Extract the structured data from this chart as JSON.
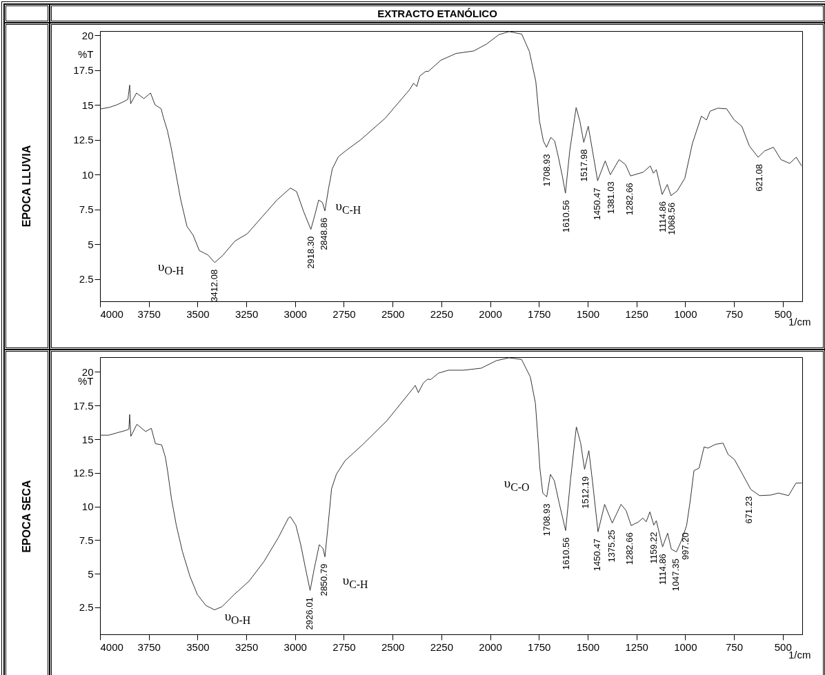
{
  "chart_data": [
    {
      "type": "line",
      "title": "EXTRACTO ETANÓLICO",
      "subtitle": "EPOCA LLUVIA",
      "xlabel": "1/cm",
      "ylabel": "%T",
      "xlim": [
        4000,
        400
      ],
      "ylim": [
        0.9,
        20.3
      ],
      "xticks": [
        4000,
        3750,
        3500,
        3250,
        3000,
        2750,
        2500,
        2250,
        2000,
        1750,
        1500,
        1250,
        1000,
        750,
        500
      ],
      "yticks": [
        2.5,
        5,
        7.5,
        10,
        12.5,
        15,
        17.5,
        20
      ],
      "series": [
        {
          "color": "#333333",
          "x": [
            4000,
            3952,
            3914,
            3876,
            3857,
            3848,
            3843,
            3813,
            3775,
            3741,
            3718,
            3687,
            3674,
            3655,
            3636,
            3611,
            3586,
            3554,
            3523,
            3491,
            3447,
            3412,
            3371,
            3308,
            3245,
            3169,
            3093,
            3024,
            2992,
            2955,
            2919,
            2898,
            2879,
            2860,
            2847,
            2828,
            2809,
            2778,
            2740,
            2664,
            2538,
            2412,
            2393,
            2376,
            2361,
            2330,
            2317,
            2253,
            2175,
            2084,
            2019,
            1955,
            1903,
            1838,
            1799,
            1766,
            1747,
            1727,
            1711,
            1689,
            1669,
            1650,
            1630,
            1614,
            1592,
            1559,
            1540,
            1520,
            1497,
            1475,
            1449,
            1410,
            1384,
            1339,
            1306,
            1280,
            1215,
            1179,
            1163,
            1148,
            1118,
            1092,
            1073,
            1041,
            1002,
            963,
            917,
            891,
            872,
            833,
            788,
            749,
            710,
            671,
            626,
            593,
            548,
            509,
            464,
            431,
            403
          ],
          "values": [
            14.7,
            14.82,
            15.0,
            15.25,
            15.4,
            16.42,
            15.08,
            15.85,
            15.45,
            15.85,
            15.0,
            14.73,
            14.04,
            13.18,
            11.97,
            10.07,
            8.17,
            6.27,
            5.66,
            4.54,
            4.23,
            3.68,
            4.19,
            5.23,
            5.75,
            6.96,
            8.17,
            9.03,
            8.77,
            7.3,
            6.06,
            7.13,
            8.17,
            8.0,
            7.39,
            9.03,
            10.41,
            11.28,
            11.71,
            12.49,
            14.04,
            16.11,
            16.55,
            16.32,
            17.06,
            17.41,
            17.4,
            18.2,
            18.69,
            18.87,
            19.36,
            20.04,
            20.26,
            20.08,
            18.83,
            16.69,
            13.83,
            12.4,
            11.96,
            12.67,
            12.4,
            11.24,
            9.9,
            8.66,
            11.69,
            14.81,
            13.83,
            12.31,
            13.47,
            11.69,
            9.55,
            10.98,
            9.99,
            11.07,
            10.71,
            9.9,
            10.17,
            10.62,
            10.09,
            10.35,
            8.57,
            9.28,
            8.48,
            8.83,
            9.73,
            12.23,
            14.19,
            13.92,
            14.55,
            14.76,
            14.72,
            13.92,
            13.47,
            12.05,
            11.24,
            11.69,
            11.96,
            11.07,
            10.8,
            11.24,
            10.62
          ]
        }
      ],
      "annotations": [
        "υ$_{O-H}$",
        {
          "text": "3412.08",
          "x": 3412,
          "y": 3.68
        },
        {
          "text": "2918.30",
          "x": 2919,
          "y": 6.06
        },
        {
          "text": "2848.86",
          "x": 2849,
          "y": 7.39
        },
        "υ$_{C-H}$",
        {
          "text": "1708.93",
          "x": 1709,
          "y": 11.96
        },
        {
          "text": "1610.56",
          "x": 1611,
          "y": 8.66
        },
        {
          "text": "1517.98",
          "x": 1518,
          "y": 12.31
        },
        {
          "text": "1450.47",
          "x": 1450,
          "y": 9.55
        },
        {
          "text": "1381.03",
          "x": 1381,
          "y": 9.99
        },
        {
          "text": "1282.66",
          "x": 1283,
          "y": 9.9
        },
        {
          "text": "1114.86",
          "x": 1115,
          "y": 8.57
        },
        {
          "text": "1068.56",
          "x": 1069,
          "y": 8.48
        },
        {
          "text": "621.08",
          "x": 621,
          "y": 11.24
        }
      ]
    },
    {
      "type": "line",
      "subtitle": "EPOCA SECA",
      "xlabel": "1/cm",
      "ylabel": "%T",
      "xlim": [
        4000,
        400
      ],
      "ylim": [
        0.5,
        21.1
      ],
      "xticks": [
        4000,
        3750,
        3500,
        3250,
        3000,
        2750,
        2500,
        2250,
        2000,
        1750,
        1500,
        1250,
        1000,
        750,
        500
      ],
      "yticks": [
        2.5,
        5,
        7.5,
        10,
        12.5,
        15,
        17.5,
        20
      ],
      "series": [
        {
          "color": "#333333",
          "x": [
            4000,
            3956,
            3912,
            3867,
            3852,
            3848,
            3842,
            3811,
            3766,
            3737,
            3716,
            3684,
            3665,
            3653,
            3634,
            3609,
            3577,
            3539,
            3501,
            3457,
            3413,
            3375,
            3312,
            3236,
            3160,
            3085,
            3034,
            3024,
            2996,
            2971,
            2946,
            2923,
            2902,
            2876,
            2857,
            2847,
            2832,
            2813,
            2788,
            2744,
            2655,
            2529,
            2403,
            2384,
            2368,
            2343,
            2321,
            2304,
            2265,
            2214,
            2136,
            2046,
            1968,
            1904,
            1839,
            1794,
            1768,
            1755,
            1745,
            1730,
            1710,
            1691,
            1671,
            1646,
            1613,
            1587,
            1558,
            1536,
            1516,
            1494,
            1475,
            1447,
            1413,
            1374,
            1329,
            1303,
            1277,
            1239,
            1217,
            1200,
            1181,
            1161,
            1148,
            1116,
            1090,
            1071,
            1045,
            1019,
            993,
            974,
            955,
            929,
            903,
            883,
            845,
            806,
            780,
            748,
            709,
            664,
            619,
            561,
            522,
            470,
            432,
            402
          ],
          "values": [
            15.3,
            15.3,
            15.48,
            15.66,
            15.75,
            16.84,
            15.21,
            16.11,
            15.57,
            15.81,
            14.67,
            14.58,
            13.67,
            12.59,
            10.6,
            8.61,
            6.62,
            4.81,
            3.46,
            2.64,
            2.32,
            2.55,
            3.46,
            4.45,
            5.9,
            7.71,
            9.15,
            9.24,
            8.61,
            7.16,
            5.36,
            3.76,
            5.36,
            7.16,
            6.89,
            6.26,
            8.43,
            11.32,
            12.41,
            13.4,
            14.58,
            16.38,
            18.64,
            19.0,
            18.46,
            19.17,
            19.46,
            19.44,
            19.91,
            20.13,
            20.13,
            20.28,
            20.84,
            21.05,
            20.93,
            19.63,
            17.68,
            15.08,
            12.85,
            10.99,
            10.72,
            12.39,
            11.92,
            10.25,
            8.21,
            12.11,
            15.92,
            14.71,
            12.76,
            14.15,
            11.83,
            8.12,
            10.16,
            8.77,
            10.16,
            9.7,
            8.58,
            8.86,
            9.14,
            8.86,
            9.6,
            8.62,
            8.95,
            7.0,
            8.02,
            6.82,
            6.63,
            7.47,
            8.58,
            10.44,
            12.67,
            12.85,
            14.43,
            14.34,
            14.62,
            14.71,
            13.87,
            13.5,
            12.48,
            11.27,
            10.81,
            10.85,
            11.0,
            10.81,
            11.74,
            11.74
          ]
        }
      ],
      "annotations": [
        "υ$_{O-H}$",
        {
          "text": "2926.01",
          "x": 2926,
          "y": 3.76
        },
        {
          "text": "2850.79",
          "x": 2851,
          "y": 6.26
        },
        "υ$_{C-H}$",
        "υ$_{C-O}$",
        {
          "text": "1708.93",
          "x": 1709,
          "y": 10.72
        },
        {
          "text": "1610.56",
          "x": 1611,
          "y": 8.21
        },
        {
          "text": "1512.19",
          "x": 1512,
          "y": 12.76
        },
        {
          "text": "1450.47",
          "x": 1450,
          "y": 8.12
        },
        {
          "text": "1375.25",
          "x": 1375,
          "y": 8.77
        },
        {
          "text": "1282.66",
          "x": 1283,
          "y": 8.58
        },
        {
          "text": "1159.22",
          "x": 1159,
          "y": 8.62
        },
        {
          "text": "1114.86",
          "x": 1115,
          "y": 7.0
        },
        {
          "text": "1047.35",
          "x": 1047,
          "y": 6.63
        },
        {
          "text": "997.20",
          "x": 997,
          "y": 8.58
        },
        {
          "text": "671.23",
          "x": 671,
          "y": 11.27
        }
      ]
    }
  ]
}
